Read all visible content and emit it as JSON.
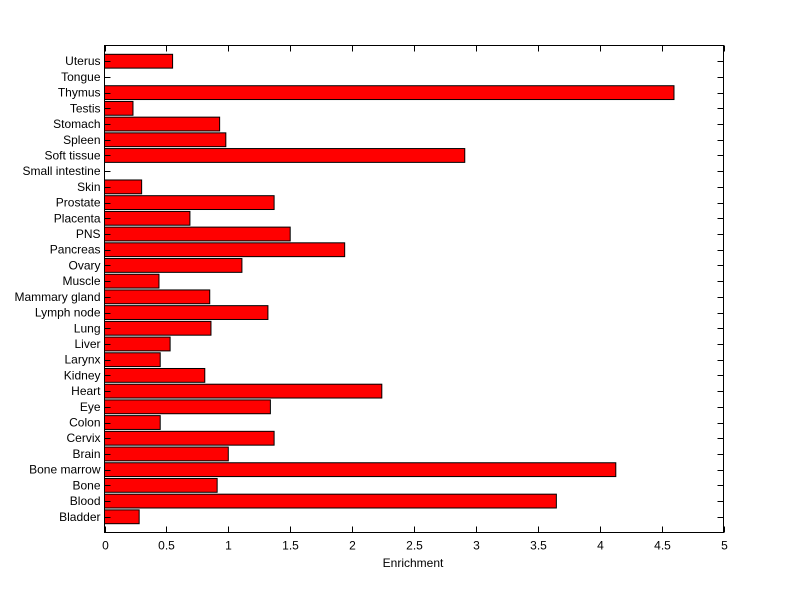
{
  "chart_data": {
    "type": "bar",
    "orientation": "horizontal",
    "title": "",
    "xlabel": "Enrichment",
    "ylabel": "",
    "xlim": [
      0,
      5
    ],
    "xticks": [
      "0",
      "0.5",
      "1",
      "1.5",
      "2",
      "2.5",
      "3",
      "3.5",
      "4",
      "4.5",
      "5"
    ],
    "grid": false,
    "bar_color": "#ff0000",
    "edge_color": "#000000",
    "categories": [
      "Bladder",
      "Blood",
      "Bone",
      "Bone marrow",
      "Brain",
      "Cervix",
      "Colon",
      "Eye",
      "Heart",
      "Kidney",
      "Larynx",
      "Liver",
      "Lung",
      "Lymph node",
      "Mammary gland",
      "Muscle",
      "Ovary",
      "Pancreas",
      "PNS",
      "Placenta",
      "Prostate",
      "Skin",
      "Small intestine",
      "Soft tissue",
      "Spleen",
      "Stomach",
      "Testis",
      "Thymus",
      "Tongue",
      "Uterus"
    ],
    "values": [
      0.28,
      3.65,
      0.91,
      4.13,
      1.0,
      1.37,
      0.45,
      1.34,
      2.24,
      0.81,
      0.45,
      0.53,
      0.86,
      1.32,
      0.85,
      0.44,
      1.11,
      1.94,
      1.5,
      0.69,
      1.37,
      0.3,
      0,
      2.91,
      0.98,
      0.93,
      0.23,
      4.6,
      0,
      0.55
    ]
  }
}
